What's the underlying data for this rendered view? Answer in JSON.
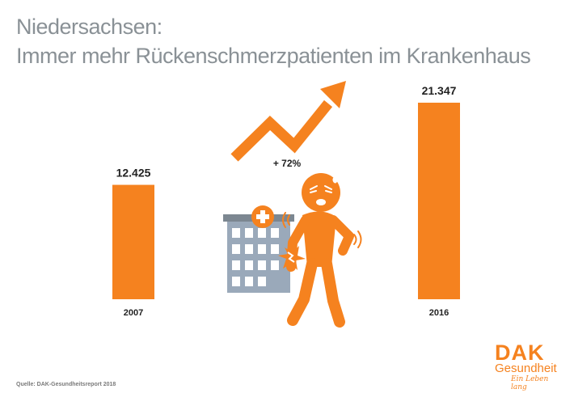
{
  "title_line1": "Niedersachsen:",
  "title_line2": "Immer mehr Rückenschmerzpatienten im Krankenhaus",
  "chart_data": {
    "type": "bar",
    "categories": [
      "2007",
      "2016"
    ],
    "values": [
      12425,
      21347
    ],
    "value_labels": [
      "12.425",
      "21.347"
    ],
    "annotation": "+ 72%",
    "ylim": [
      0,
      26000
    ],
    "grid": false,
    "bar_color": "#f5821f"
  },
  "source": "Quelle: DAK-Gesundheitsreport 2018",
  "logo": {
    "brand": "DAK",
    "name": "Gesundheit",
    "claim": "Ein Leben lang"
  },
  "colors": {
    "accent": "#f5821f",
    "title": "#8a9196",
    "building": "#9aa9ba",
    "building_roof": "#7c8791"
  },
  "illustration": {
    "icons": [
      "trend-arrow-icon",
      "hospital-building-icon",
      "hospital-cross-icon",
      "person-back-pain-icon",
      "pain-burst-icon"
    ]
  }
}
